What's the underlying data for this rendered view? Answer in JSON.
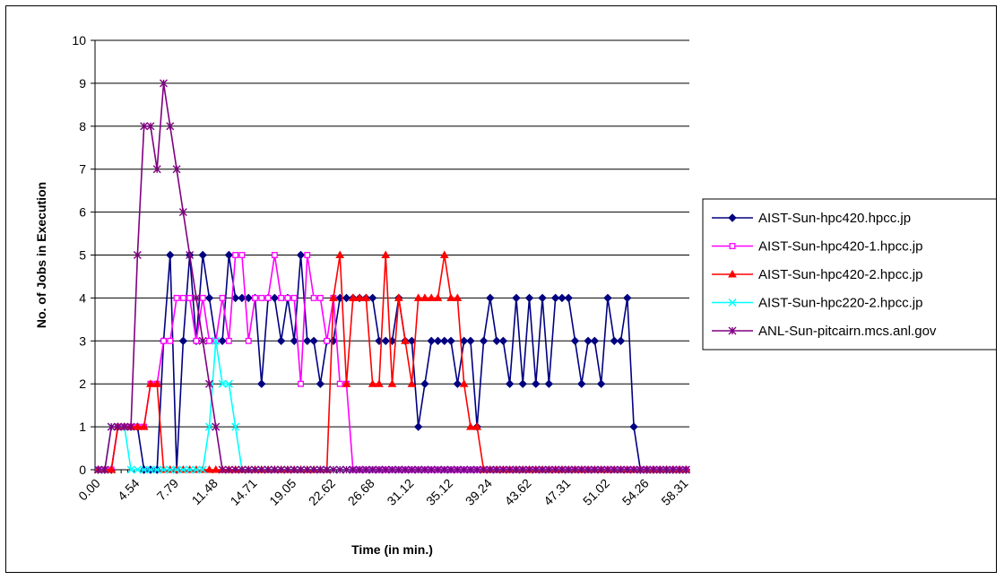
{
  "chart_data": {
    "type": "line",
    "xlabel": "Time (in min.)",
    "ylabel": "No. of Jobs in Execution",
    "ylim": [
      0,
      10
    ],
    "yticks": [
      0,
      1,
      2,
      3,
      4,
      5,
      6,
      7,
      8,
      9,
      10
    ],
    "grid": "horizontal",
    "legend_position": "right",
    "x_tick_labels": [
      "0.00",
      "4.54",
      "7.79",
      "11.48",
      "14.71",
      "19.05",
      "22.62",
      "26.68",
      "31.12",
      "35.12",
      "39.24",
      "43.62",
      "47.31",
      "51.02",
      "54.26",
      "58.31"
    ],
    "point_count": 91,
    "series": [
      {
        "name": "AIST-Sun-hpc420.hpcc.jp",
        "color": "#000080",
        "marker": "diamond",
        "values": [
          0,
          0,
          0,
          1,
          1,
          1,
          1,
          0,
          0,
          0,
          3,
          5,
          0,
          3,
          5,
          3,
          5,
          4,
          3,
          3,
          5,
          4,
          4,
          4,
          4,
          2,
          4,
          4,
          3,
          4,
          3,
          5,
          3,
          3,
          2,
          3,
          3,
          4,
          4,
          4,
          4,
          4,
          4,
          3,
          3,
          3,
          4,
          3,
          3,
          1,
          2,
          3,
          3,
          3,
          3,
          2,
          3,
          3,
          1,
          3,
          4,
          3,
          3,
          2,
          4,
          2,
          4,
          2,
          4,
          2,
          4,
          4,
          4,
          3,
          2,
          3,
          3,
          2,
          4,
          3,
          3,
          4,
          1,
          0,
          0,
          0,
          0,
          0,
          0,
          0,
          0
        ]
      },
      {
        "name": "AIST-Sun-hpc420-1.hpcc.jp",
        "color": "#FF00FF",
        "marker": "square",
        "values": [
          0,
          0,
          0,
          1,
          1,
          1,
          1,
          1,
          2,
          2,
          3,
          3,
          4,
          4,
          4,
          3,
          4,
          3,
          3,
          4,
          3,
          5,
          5,
          3,
          4,
          4,
          4,
          5,
          4,
          4,
          4,
          2,
          5,
          4,
          4,
          3,
          4,
          2,
          2,
          0,
          0,
          0,
          0,
          0,
          0,
          0,
          0,
          0,
          0,
          0,
          0,
          0,
          0,
          0,
          0,
          0,
          0,
          0,
          0,
          0,
          0,
          0,
          0,
          0,
          0,
          0,
          0,
          0,
          0,
          0,
          0,
          0,
          0,
          0,
          0,
          0,
          0,
          0,
          0,
          0,
          0,
          0,
          0,
          0,
          0,
          0,
          0,
          0,
          0,
          0,
          0
        ]
      },
      {
        "name": "AIST-Sun-hpc420-2.hpcc.jp",
        "color": "#FF0000",
        "marker": "triangle",
        "values": [
          0,
          0,
          0,
          1,
          1,
          1,
          1,
          1,
          2,
          2,
          0,
          0,
          0,
          0,
          0,
          0,
          0,
          0,
          0,
          0,
          0,
          0,
          0,
          0,
          0,
          0,
          0,
          0,
          0,
          0,
          0,
          0,
          0,
          0,
          0,
          0,
          4,
          5,
          2,
          4,
          4,
          4,
          2,
          2,
          5,
          2,
          4,
          3,
          2,
          4,
          4,
          4,
          4,
          5,
          4,
          4,
          2,
          1,
          1,
          0,
          0,
          0,
          0,
          0,
          0,
          0,
          0,
          0,
          0,
          0,
          0,
          0,
          0,
          0,
          0,
          0,
          0,
          0,
          0,
          0,
          0,
          0,
          0,
          0,
          0,
          0,
          0,
          0,
          0,
          0,
          0
        ]
      },
      {
        "name": "AIST-Sun-hpc220-2.hpcc.jp",
        "color": "#00FFFF",
        "marker": "x",
        "values": [
          0,
          0,
          1,
          1,
          1,
          0,
          0,
          0,
          0,
          0,
          0,
          0,
          0,
          0,
          0,
          0,
          0,
          1,
          3,
          2,
          2,
          1,
          0,
          0,
          0,
          0,
          0,
          0,
          0,
          0,
          0,
          0,
          0,
          0,
          0,
          0,
          0,
          0,
          0,
          0,
          0,
          0,
          0,
          0,
          0,
          0,
          0,
          0,
          0,
          0,
          0,
          0,
          0,
          0,
          0,
          0,
          0,
          0,
          0,
          0,
          0,
          0,
          0,
          0,
          0,
          0,
          0,
          0,
          0,
          0,
          0,
          0,
          0,
          0,
          0,
          0,
          0,
          0,
          0,
          0,
          0,
          0,
          0,
          0,
          0,
          0,
          0,
          0,
          0,
          0,
          0
        ]
      },
      {
        "name": "ANL-Sun-pitcairn.mcs.anl.gov",
        "color": "#800080",
        "marker": "star",
        "values": [
          0,
          0,
          1,
          1,
          1,
          1,
          5,
          8,
          8,
          7,
          9,
          8,
          7,
          6,
          5,
          4,
          3,
          2,
          1,
          0,
          0,
          0,
          0,
          0,
          0,
          0,
          0,
          0,
          0,
          0,
          0,
          0,
          0,
          0,
          0,
          0,
          0,
          0,
          0,
          0,
          0,
          0,
          0,
          0,
          0,
          0,
          0,
          0,
          0,
          0,
          0,
          0,
          0,
          0,
          0,
          0,
          0,
          0,
          0,
          0,
          0,
          0,
          0,
          0,
          0,
          0,
          0,
          0,
          0,
          0,
          0,
          0,
          0,
          0,
          0,
          0,
          0,
          0,
          0,
          0,
          0,
          0,
          0,
          0,
          0,
          0,
          0,
          0,
          0,
          0,
          0
        ]
      }
    ]
  }
}
